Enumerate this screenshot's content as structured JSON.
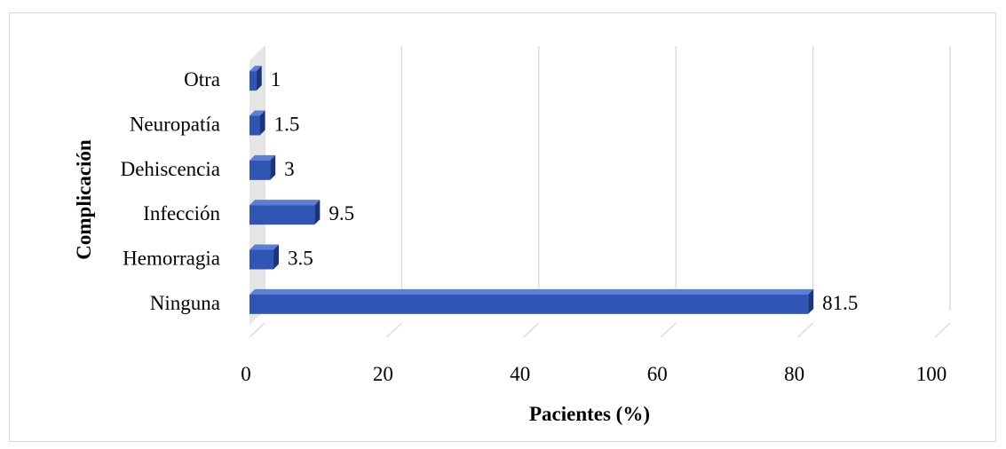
{
  "chart_data": {
    "type": "bar",
    "orientation": "horizontal",
    "style": "3d",
    "categories": [
      "Ninguna",
      "Hemorragia",
      "Infección",
      "Dehiscencia",
      "Neuropatía",
      "Otra"
    ],
    "values": [
      81.5,
      3.5,
      9.5,
      3,
      1.5,
      1
    ],
    "data_labels": [
      "81.5",
      "3.5",
      "9.5",
      "3",
      "1.5",
      "1"
    ],
    "xlabel": "Pacientes (%)",
    "ylabel": "Complicación",
    "xlim": [
      0,
      100
    ],
    "x_ticks": [
      "0",
      "20",
      "40",
      "60",
      "80",
      "100"
    ],
    "grid": true,
    "legend": false,
    "colors": {
      "bar_face": "#2f55b5",
      "bar_top": "#5b7fd6",
      "bar_side": "#1b3480",
      "gridline": "#d9d9de",
      "wall": "#e3e3e3"
    }
  }
}
